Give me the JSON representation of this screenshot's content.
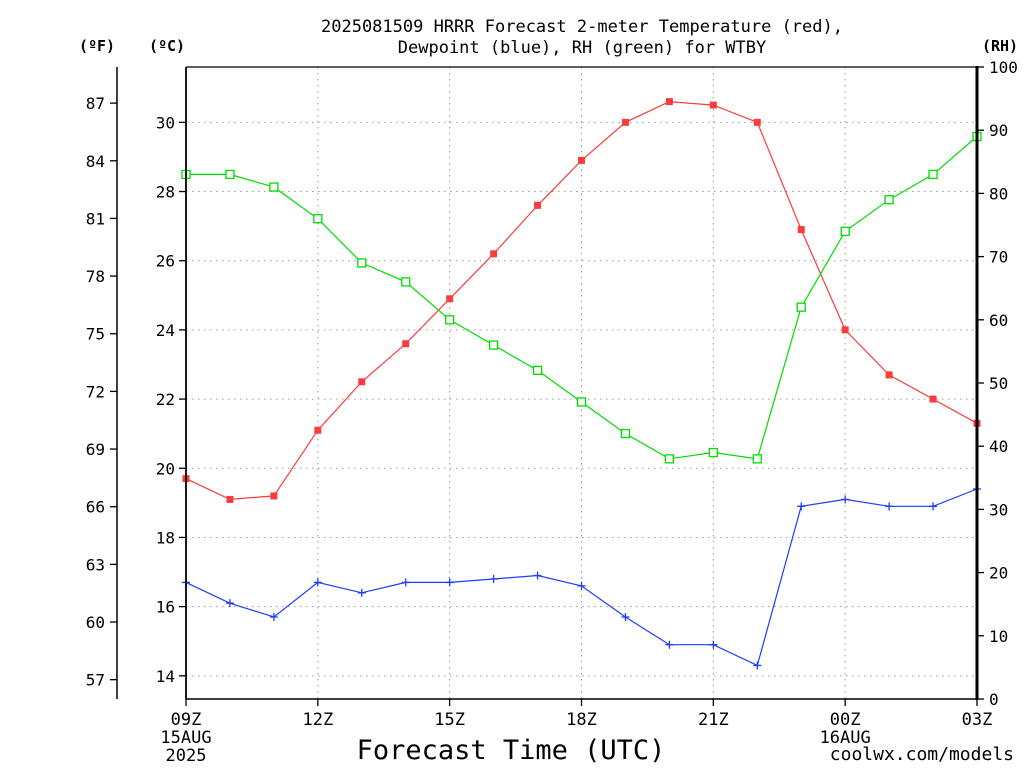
{
  "chart_data": {
    "type": "line",
    "title": "2025081509 HRRR Forecast 2-meter Temperature (red),\nDewpoint (blue), RH (green) for WTBY",
    "xlabel": "Forecast Time (UTC)",
    "x": [
      "09Z",
      "10Z",
      "11Z",
      "12Z",
      "13Z",
      "14Z",
      "15Z",
      "16Z",
      "17Z",
      "18Z",
      "19Z",
      "20Z",
      "21Z",
      "22Z",
      "23Z",
      "00Z",
      "01Z",
      "02Z",
      "03Z"
    ],
    "x_ticks": [
      {
        "label": "09Z",
        "sub": [
          "15AUG",
          "2025"
        ]
      },
      {
        "label": "12Z",
        "sub": []
      },
      {
        "label": "15Z",
        "sub": []
      },
      {
        "label": "18Z",
        "sub": []
      },
      {
        "label": "21Z",
        "sub": []
      },
      {
        "label": "00Z",
        "sub": [
          "16AUG"
        ]
      },
      {
        "label": "03Z",
        "sub": []
      }
    ],
    "y_axes": {
      "fahrenheit": {
        "label": "(ºF)",
        "ticks": [
          57,
          60,
          63,
          66,
          69,
          72,
          75,
          78,
          81,
          84,
          87
        ]
      },
      "celsius": {
        "label": "(ºC)",
        "ticks": [
          14,
          16,
          18,
          20,
          22,
          24,
          26,
          28,
          30
        ],
        "ylim": [
          13.33,
          31.6
        ]
      },
      "rh": {
        "label": "(RH)",
        "ticks": [
          0,
          10,
          20,
          30,
          40,
          50,
          60,
          70,
          80,
          90,
          100
        ],
        "ylim": [
          0,
          100
        ]
      }
    },
    "grid": true,
    "series": [
      {
        "color": "#fa3c3c",
        "marker": "filled-square",
        "y_axis": "celsius",
        "values": [
          19.7,
          19.1,
          19.2,
          21.1,
          22.5,
          23.6,
          24.9,
          26.2,
          27.6,
          28.9,
          30.0,
          30.6,
          30.5,
          30.0,
          26.9,
          24.0,
          22.7,
          22.0,
          21.3
        ]
      },
      {
        "color": "#1e3cff",
        "marker": "plus",
        "y_axis": "celsius",
        "values": [
          16.7,
          16.1,
          15.7,
          16.7,
          16.4,
          16.7,
          16.7,
          16.8,
          16.9,
          16.6,
          15.7,
          14.9,
          14.9,
          14.3,
          18.9,
          19.1,
          18.9,
          18.9,
          19.4
        ]
      },
      {
        "color": "#00dc00",
        "marker": "open-square",
        "y_axis": "rh",
        "values": [
          83,
          83,
          81,
          76,
          69,
          66,
          60,
          56,
          52,
          47,
          42,
          38,
          39,
          38,
          62,
          74,
          79,
          83,
          89
        ]
      }
    ]
  },
  "watermark": {
    "text": "coolwx.com/models",
    "color": "#e83c3c"
  }
}
